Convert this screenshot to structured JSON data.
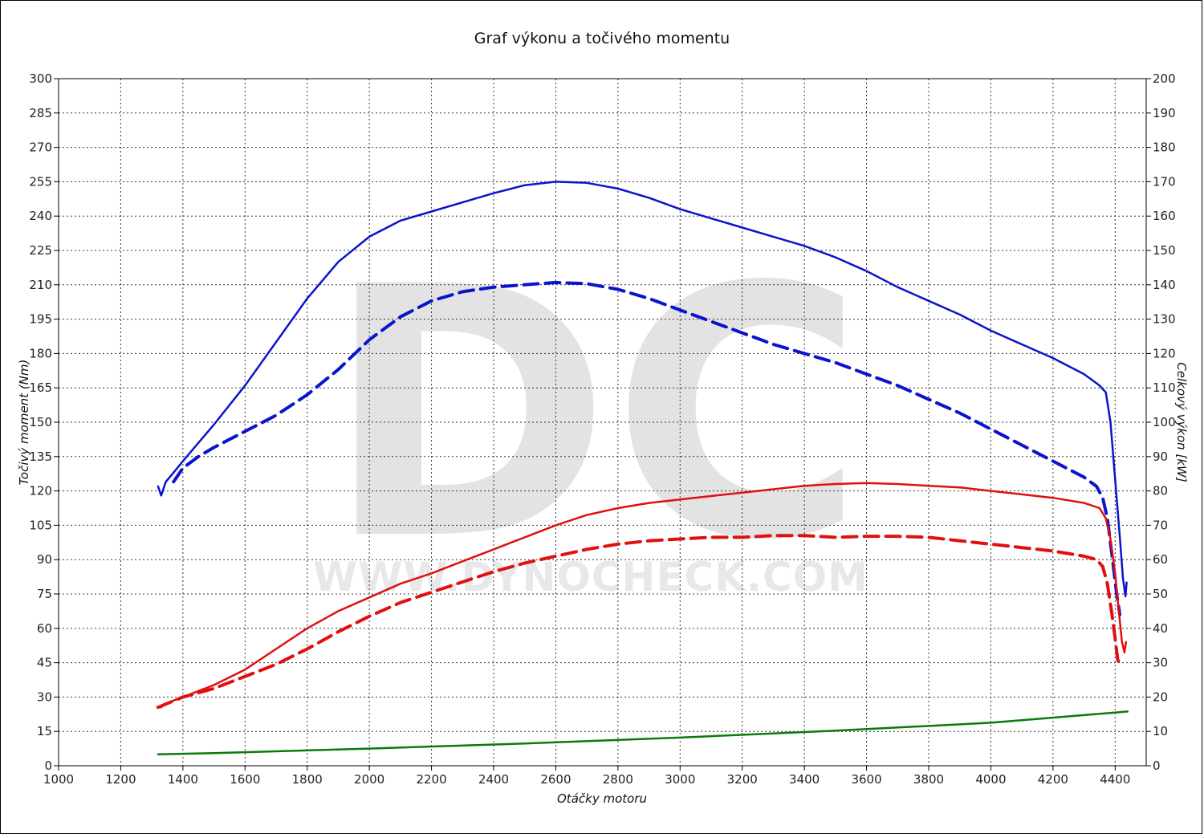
{
  "chart_data": {
    "type": "line",
    "title": "Graf výkonu a točivého momentu",
    "xlabel": "Otáčky motoru",
    "ylabel_left": "Točivý moment (Nm)",
    "ylabel_right": "Celkový výkon [kW]",
    "watermark": {
      "logo": "DC",
      "url": "WWW.DYNOCHECK.COM"
    },
    "xlim": [
      1000,
      4500
    ],
    "x_ticks": [
      1000,
      1200,
      1400,
      1600,
      1800,
      2000,
      2200,
      2400,
      2600,
      2800,
      3000,
      3200,
      3400,
      3600,
      3800,
      4000,
      4200,
      4400
    ],
    "ylim_left": [
      0,
      300
    ],
    "y_ticks_left": [
      0,
      15,
      30,
      45,
      60,
      75,
      90,
      105,
      120,
      135,
      150,
      165,
      180,
      195,
      210,
      225,
      240,
      255,
      270,
      285,
      300
    ],
    "ylim_right": [
      0,
      200
    ],
    "y_ticks_right": [
      0,
      10,
      20,
      30,
      40,
      50,
      60,
      70,
      80,
      90,
      100,
      110,
      120,
      130,
      140,
      150,
      160,
      170,
      180,
      190,
      200
    ],
    "grid": true,
    "series": [
      {
        "axis": "left",
        "color": "#0a14cc",
        "dash": false,
        "points": [
          [
            1320,
            122
          ],
          [
            1330,
            118
          ],
          [
            1345,
            124
          ],
          [
            1370,
            128
          ],
          [
            1400,
            133
          ],
          [
            1450,
            141
          ],
          [
            1500,
            149
          ],
          [
            1600,
            166
          ],
          [
            1700,
            185
          ],
          [
            1800,
            204
          ],
          [
            1900,
            220
          ],
          [
            2000,
            231
          ],
          [
            2100,
            238
          ],
          [
            2200,
            242
          ],
          [
            2300,
            246
          ],
          [
            2400,
            250
          ],
          [
            2500,
            253.5
          ],
          [
            2600,
            255
          ],
          [
            2700,
            254.5
          ],
          [
            2800,
            252
          ],
          [
            2900,
            248
          ],
          [
            3000,
            243
          ],
          [
            3100,
            239
          ],
          [
            3200,
            235
          ],
          [
            3300,
            231
          ],
          [
            3400,
            227
          ],
          [
            3500,
            222
          ],
          [
            3600,
            216
          ],
          [
            3700,
            209
          ],
          [
            3800,
            203
          ],
          [
            3900,
            197
          ],
          [
            4000,
            190
          ],
          [
            4100,
            184
          ],
          [
            4200,
            178
          ],
          [
            4300,
            171
          ],
          [
            4350,
            166
          ],
          [
            4370,
            163
          ],
          [
            4385,
            150
          ],
          [
            4400,
            125
          ],
          [
            4415,
            100
          ],
          [
            4425,
            82
          ],
          [
            4433,
            74
          ],
          [
            4437,
            80
          ]
        ]
      },
      {
        "axis": "left",
        "color": "#0a14cc",
        "dash": true,
        "points": [
          [
            1370,
            124
          ],
          [
            1400,
            130
          ],
          [
            1450,
            135
          ],
          [
            1500,
            139
          ],
          [
            1600,
            146
          ],
          [
            1700,
            153
          ],
          [
            1800,
            162
          ],
          [
            1900,
            173
          ],
          [
            2000,
            186
          ],
          [
            2100,
            196
          ],
          [
            2200,
            203
          ],
          [
            2300,
            207
          ],
          [
            2400,
            209
          ],
          [
            2500,
            210
          ],
          [
            2600,
            211
          ],
          [
            2700,
            210.5
          ],
          [
            2800,
            208
          ],
          [
            2900,
            204
          ],
          [
            3000,
            199
          ],
          [
            3100,
            194
          ],
          [
            3200,
            189
          ],
          [
            3300,
            184
          ],
          [
            3400,
            180
          ],
          [
            3500,
            176
          ],
          [
            3600,
            171
          ],
          [
            3700,
            166
          ],
          [
            3800,
            160
          ],
          [
            3900,
            154
          ],
          [
            4000,
            147
          ],
          [
            4100,
            140
          ],
          [
            4200,
            133
          ],
          [
            4300,
            126
          ],
          [
            4340,
            122
          ],
          [
            4360,
            117
          ],
          [
            4375,
            108
          ],
          [
            4390,
            92
          ],
          [
            4405,
            75
          ],
          [
            4415,
            66
          ]
        ]
      },
      {
        "axis": "right",
        "color": "#e01010",
        "dash": false,
        "points": [
          [
            1320,
            17
          ],
          [
            1330,
            17
          ],
          [
            1340,
            18
          ],
          [
            1400,
            20
          ],
          [
            1500,
            23.5
          ],
          [
            1600,
            28
          ],
          [
            1700,
            34
          ],
          [
            1800,
            40
          ],
          [
            1900,
            45
          ],
          [
            2000,
            49
          ],
          [
            2100,
            53
          ],
          [
            2200,
            56
          ],
          [
            2300,
            59.5
          ],
          [
            2400,
            63
          ],
          [
            2500,
            66.5
          ],
          [
            2600,
            70
          ],
          [
            2700,
            73
          ],
          [
            2800,
            75
          ],
          [
            2900,
            76.5
          ],
          [
            3000,
            77.5
          ],
          [
            3100,
            78.5
          ],
          [
            3200,
            79.5
          ],
          [
            3300,
            80.5
          ],
          [
            3400,
            81.5
          ],
          [
            3500,
            82
          ],
          [
            3600,
            82.3
          ],
          [
            3700,
            82
          ],
          [
            3800,
            81.5
          ],
          [
            3900,
            81
          ],
          [
            4000,
            80
          ],
          [
            4100,
            79
          ],
          [
            4200,
            78
          ],
          [
            4300,
            76.5
          ],
          [
            4350,
            75
          ],
          [
            4370,
            72
          ],
          [
            4385,
            66
          ],
          [
            4400,
            56
          ],
          [
            4412,
            45
          ],
          [
            4422,
            36
          ],
          [
            4430,
            33
          ],
          [
            4435,
            36
          ]
        ]
      },
      {
        "axis": "right",
        "color": "#e01010",
        "dash": true,
        "points": [
          [
            1320,
            17
          ],
          [
            1400,
            20
          ],
          [
            1500,
            22.5
          ],
          [
            1600,
            26
          ],
          [
            1700,
            29.5
          ],
          [
            1800,
            34
          ],
          [
            1900,
            39
          ],
          [
            2000,
            43.5
          ],
          [
            2100,
            47.5
          ],
          [
            2200,
            50.5
          ],
          [
            2300,
            53.5
          ],
          [
            2400,
            56.5
          ],
          [
            2500,
            59
          ],
          [
            2600,
            61
          ],
          [
            2700,
            63
          ],
          [
            2800,
            64.5
          ],
          [
            2900,
            65.5
          ],
          [
            3000,
            66
          ],
          [
            3100,
            66.5
          ],
          [
            3200,
            66.5
          ],
          [
            3300,
            67
          ],
          [
            3400,
            67
          ],
          [
            3500,
            66.5
          ],
          [
            3600,
            66.8
          ],
          [
            3700,
            66.8
          ],
          [
            3800,
            66.5
          ],
          [
            3900,
            65.5
          ],
          [
            4000,
            64.5
          ],
          [
            4100,
            63.5
          ],
          [
            4200,
            62.5
          ],
          [
            4300,
            61
          ],
          [
            4340,
            60
          ],
          [
            4360,
            58
          ],
          [
            4375,
            53
          ],
          [
            4390,
            44
          ],
          [
            4400,
            37
          ],
          [
            4408,
            31
          ],
          [
            4412,
            30
          ]
        ]
      },
      {
        "axis": "left",
        "color": "#0a7a0a",
        "dash": false,
        "points": [
          [
            1320,
            5
          ],
          [
            1500,
            5.5
          ],
          [
            2000,
            7.5
          ],
          [
            2500,
            9.7
          ],
          [
            3000,
            12.3
          ],
          [
            3500,
            15.3
          ],
          [
            4000,
            18.8
          ],
          [
            4440,
            23.7
          ]
        ]
      }
    ]
  }
}
